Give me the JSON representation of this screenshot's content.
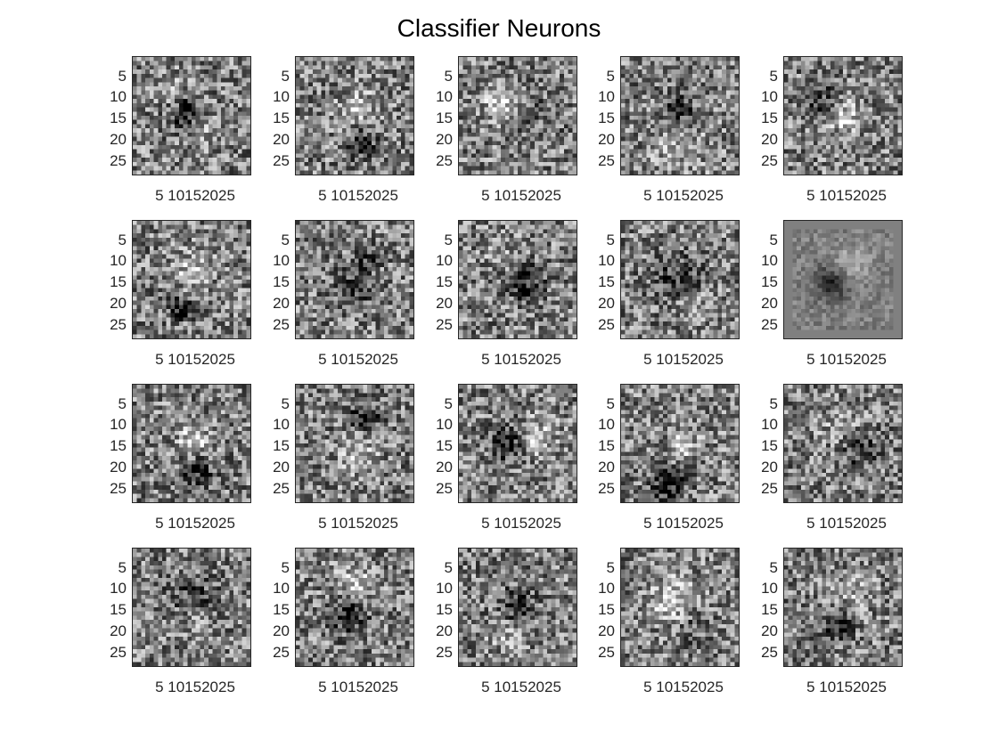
{
  "figure": {
    "title": "Classifier Neurons"
  },
  "chart_data": {
    "type": "heatmap",
    "title": "Classifier Neurons",
    "layout": "grid of 20 small grayscale images (4 rows x 5 columns)",
    "image_size": [
      28,
      28
    ],
    "colormap": "gray",
    "panels_count": 20,
    "yticks": [
      "5",
      "10",
      "15",
      "20",
      "25"
    ],
    "xtick_text": "5 10152025",
    "xticks": [
      "5",
      "10",
      "15",
      "20",
      "25"
    ],
    "panels": [
      {
        "index": 1,
        "dominant_feature": "dark center blob"
      },
      {
        "index": 2,
        "dominant_feature": "light center, dark lower blob"
      },
      {
        "index": 3,
        "dominant_feature": "light upper-left region"
      },
      {
        "index": 4,
        "dominant_feature": "dark center spot, light surround"
      },
      {
        "index": 5,
        "dominant_feature": "light vertical center stroke"
      },
      {
        "index": 6,
        "dominant_feature": "light center, dark bottom-left spot"
      },
      {
        "index": 7,
        "dominant_feature": "dark center-bottom strokes"
      },
      {
        "index": 8,
        "dominant_feature": "dark center blob"
      },
      {
        "index": 9,
        "dominant_feature": "dark diagonal band"
      },
      {
        "index": 10,
        "dominant_feature": "smooth textured digit, gray border"
      },
      {
        "index": 11,
        "dominant_feature": "light center, dark bottom"
      },
      {
        "index": 12,
        "dominant_feature": "dark top, light center"
      },
      {
        "index": 13,
        "dominant_feature": "dark center with light side"
      },
      {
        "index": 14,
        "dominant_feature": "dark bottom, light center stroke"
      },
      {
        "index": 15,
        "dominant_feature": "dark right-center stroke"
      },
      {
        "index": 16,
        "dominant_feature": "dark ring-like center"
      },
      {
        "index": 17,
        "dominant_feature": "light top, dark center"
      },
      {
        "index": 18,
        "dominant_feature": "dark center vertical"
      },
      {
        "index": 19,
        "dominant_feature": "light diagonal ellipse"
      },
      {
        "index": 20,
        "dominant_feature": "dark center-left blob"
      }
    ]
  }
}
